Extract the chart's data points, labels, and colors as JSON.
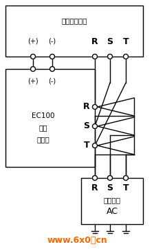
{
  "bg_color": "#ffffff",
  "line_color": "#000000",
  "watermark_color": "#ff6600",
  "fig_width": 2.24,
  "fig_height": 3.61,
  "dpi": 100,
  "top_box_label": "能量回馈单元",
  "top_box_plus": "(+)",
  "top_box_minus": "(-)",
  "top_box_R": "R",
  "top_box_S": "S",
  "top_box_T": "T",
  "left_box_plus": "(+)",
  "left_box_minus": "(-)",
  "left_box_label1": "EC100",
  "left_box_label2": "智能",
  "left_box_label3": "整体机",
  "mid_R": "R",
  "mid_S": "S",
  "mid_T": "T",
  "bot_R": "R",
  "bot_S": "S",
  "bot_T": "T",
  "bot_label1": "交流电网",
  "bot_label2": "AC",
  "watermark": "www.6x0．cn"
}
